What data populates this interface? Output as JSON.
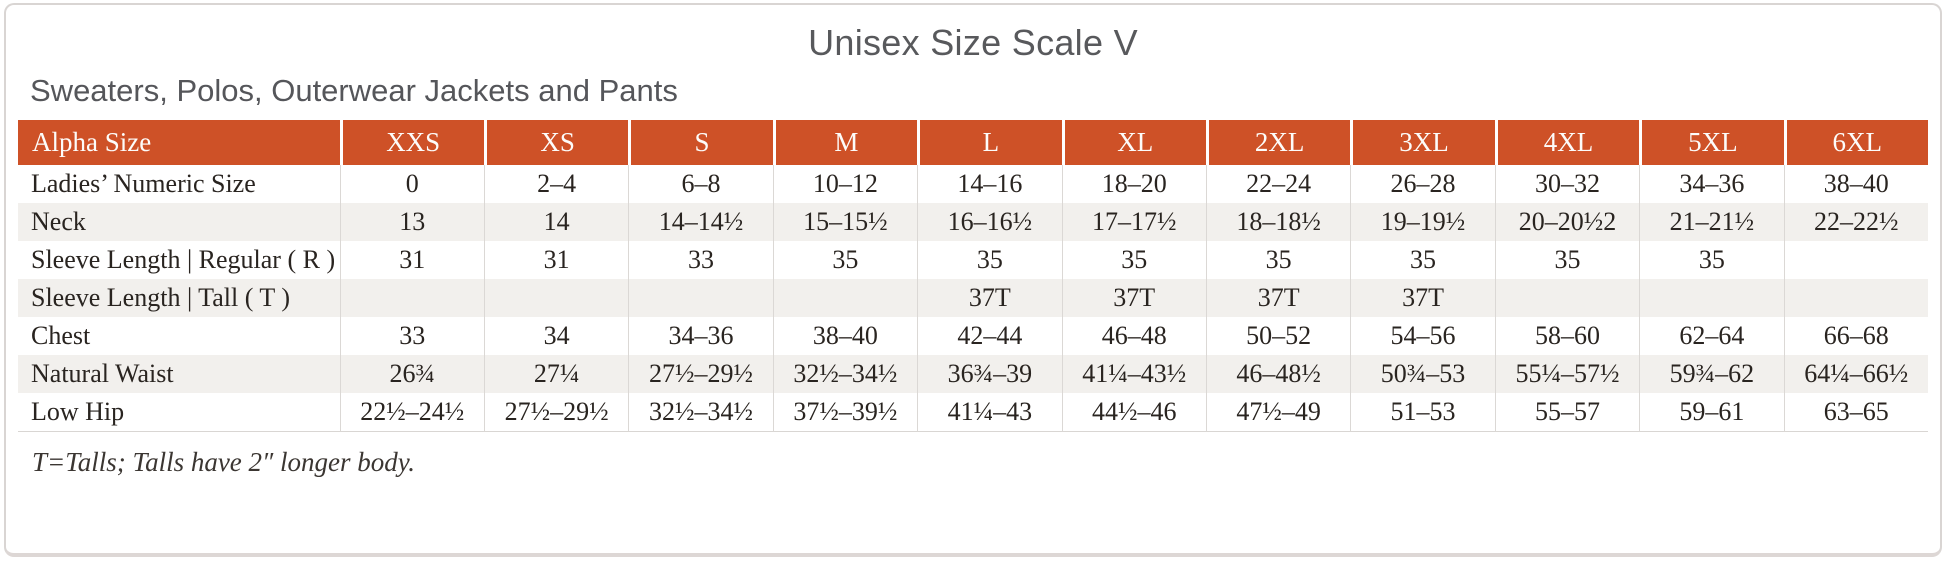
{
  "page": {
    "title": "Unisex Size Scale V",
    "subtitle": "Sweaters, Polos, Outerwear Jackets and Pants",
    "footnote": "T=Talls; Talls have 2″ longer body."
  },
  "colors": {
    "header_background": "#ce5127",
    "header_text": "#ffffff",
    "stripe_background": "#f2f0ed",
    "body_text": "#292420",
    "heading_text": "#58595c"
  },
  "table": {
    "columns": [
      "Alpha Size",
      "XXS",
      "XS",
      "S",
      "M",
      "L",
      "XL",
      "2XL",
      "3XL",
      "4XL",
      "5XL",
      "6XL"
    ],
    "rows": [
      {
        "label": "Ladies’ Numeric Size",
        "values": [
          "0",
          "2–4",
          "6–8",
          "10–12",
          "14–16",
          "18–20",
          "22–24",
          "26–28",
          "30–32",
          "34–36",
          "38–40"
        ]
      },
      {
        "label": "Neck",
        "values": [
          "13",
          "14",
          "14–14½",
          "15–15½",
          "16–16½",
          "17–17½",
          "18–18½",
          "19–19½",
          "20–20½2",
          "21–21½",
          "22–22½"
        ]
      },
      {
        "label": "Sleeve Length | Regular ( R )",
        "values": [
          "31",
          "31",
          "33",
          "35",
          "35",
          "35",
          "35",
          "35",
          "35",
          "35",
          ""
        ]
      },
      {
        "label": "Sleeve Length | Tall ( T )",
        "values": [
          "",
          "",
          "",
          "",
          "37T",
          "37T",
          "37T",
          "37T",
          "",
          "",
          ""
        ]
      },
      {
        "label": "Chest",
        "values": [
          "33",
          "34",
          "34–36",
          "38–40",
          "42–44",
          "46–48",
          "50–52",
          "54–56",
          "58–60",
          "62–64",
          "66–68"
        ]
      },
      {
        "label": "Natural Waist",
        "values": [
          "26¾",
          "27¼",
          "27½–29½",
          "32½–34½",
          "36¾–39",
          "41¼–43½",
          "46–48½",
          "50¾–53",
          "55¼–57½",
          "59¾–62",
          "64¼–66½"
        ]
      },
      {
        "label": "Low Hip",
        "values": [
          "22½–24½",
          "27½–29½",
          "32½–34½",
          "37½–39½",
          "41¼–43",
          "44½–46",
          "47½–49",
          "51–53",
          "55–57",
          "59–61",
          "63–65"
        ]
      }
    ]
  }
}
